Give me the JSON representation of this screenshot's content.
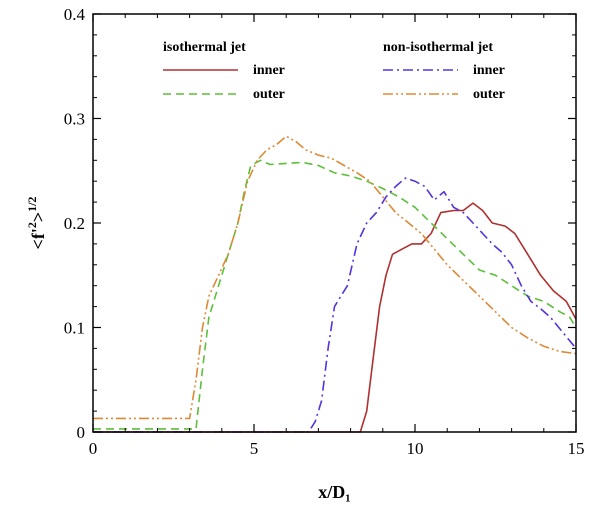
{
  "chart_data": {
    "type": "line",
    "xlabel": "x/D₁",
    "ylabel": "<f'²>¹ᐟ²",
    "ylabel_parts": {
      "main": "<f'",
      "sup": "2",
      "close": ">",
      "exp": "1/2"
    },
    "xlim": [
      0,
      15
    ],
    "ylim": [
      0,
      0.4
    ],
    "xticks": [
      0,
      5,
      10,
      15
    ],
    "xtick_labels": [
      "0",
      "5",
      "10",
      "15"
    ],
    "yticks": [
      0,
      0.1,
      0.2,
      0.3,
      0.4
    ],
    "ytick_labels": [
      "0",
      "0.1",
      "0.2",
      "0.3",
      "0.4"
    ],
    "grid": false,
    "legend": {
      "groups": [
        {
          "heading": "isothermal jet",
          "entries": [
            "inner",
            "outer"
          ]
        },
        {
          "heading": "non-isothermal jet",
          "entries": [
            "inner",
            "outer"
          ]
        }
      ]
    },
    "series": [
      {
        "name": "inner",
        "group": "isothermal jet",
        "color": "#b03030",
        "dash": "",
        "points": [
          [
            0,
            0
          ],
          [
            8.3,
            0
          ],
          [
            8.5,
            0.02
          ],
          [
            8.7,
            0.07
          ],
          [
            8.9,
            0.12
          ],
          [
            9.1,
            0.15
          ],
          [
            9.3,
            0.17
          ],
          [
            9.6,
            0.175
          ],
          [
            9.9,
            0.18
          ],
          [
            10.2,
            0.18
          ],
          [
            10.5,
            0.19
          ],
          [
            10.8,
            0.21
          ],
          [
            11.2,
            0.212
          ],
          [
            11.5,
            0.212
          ],
          [
            11.8,
            0.219
          ],
          [
            12.1,
            0.212
          ],
          [
            12.4,
            0.2
          ],
          [
            12.8,
            0.197
          ],
          [
            13.1,
            0.19
          ],
          [
            13.5,
            0.17
          ],
          [
            13.9,
            0.15
          ],
          [
            14.3,
            0.135
          ],
          [
            14.7,
            0.125
          ],
          [
            15,
            0.108
          ]
        ]
      },
      {
        "name": "outer",
        "group": "isothermal jet",
        "color": "#5dbf3a",
        "dash": "8,5",
        "points": [
          [
            0,
            0.003
          ],
          [
            3.2,
            0.003
          ],
          [
            3.4,
            0.06
          ],
          [
            3.6,
            0.11
          ],
          [
            3.9,
            0.14
          ],
          [
            4.2,
            0.17
          ],
          [
            4.5,
            0.2
          ],
          [
            4.7,
            0.23
          ],
          [
            4.9,
            0.255
          ],
          [
            5.2,
            0.26
          ],
          [
            5.5,
            0.256
          ],
          [
            6,
            0.257
          ],
          [
            6.5,
            0.258
          ],
          [
            7,
            0.255
          ],
          [
            7.5,
            0.248
          ],
          [
            8,
            0.245
          ],
          [
            8.5,
            0.24
          ],
          [
            9,
            0.233
          ],
          [
            9.5,
            0.225
          ],
          [
            10,
            0.215
          ],
          [
            10.5,
            0.2
          ],
          [
            11,
            0.185
          ],
          [
            11.5,
            0.17
          ],
          [
            12,
            0.155
          ],
          [
            12.5,
            0.15
          ],
          [
            13,
            0.14
          ],
          [
            13.5,
            0.13
          ],
          [
            14,
            0.125
          ],
          [
            14.5,
            0.115
          ],
          [
            14.8,
            0.11
          ],
          [
            15,
            0.1
          ]
        ]
      },
      {
        "name": "inner",
        "group": "non-isothermal jet",
        "color": "#5533dd",
        "dash": "10,4,2,4",
        "points": [
          [
            0,
            0
          ],
          [
            6.7,
            0
          ],
          [
            6.9,
            0.01
          ],
          [
            7.1,
            0.03
          ],
          [
            7.3,
            0.08
          ],
          [
            7.5,
            0.12
          ],
          [
            7.7,
            0.13
          ],
          [
            7.9,
            0.14
          ],
          [
            8.2,
            0.18
          ],
          [
            8.5,
            0.2
          ],
          [
            8.8,
            0.21
          ],
          [
            9.1,
            0.225
          ],
          [
            9.4,
            0.235
          ],
          [
            9.7,
            0.243
          ],
          [
            10,
            0.24
          ],
          [
            10.3,
            0.235
          ],
          [
            10.6,
            0.222
          ],
          [
            10.9,
            0.23
          ],
          [
            11.2,
            0.215
          ],
          [
            11.5,
            0.21
          ],
          [
            11.8,
            0.2
          ],
          [
            12.1,
            0.19
          ],
          [
            12.4,
            0.18
          ],
          [
            12.7,
            0.172
          ],
          [
            13,
            0.16
          ],
          [
            13.3,
            0.14
          ],
          [
            13.6,
            0.125
          ],
          [
            13.9,
            0.118
          ],
          [
            14.2,
            0.11
          ],
          [
            14.6,
            0.095
          ],
          [
            15,
            0.08
          ]
        ]
      },
      {
        "name": "outer",
        "group": "non-isothermal jet",
        "color": "#dd8a35",
        "dash": "10,3,2,3,2,3",
        "points": [
          [
            0,
            0.013
          ],
          [
            3,
            0.013
          ],
          [
            3.2,
            0.05
          ],
          [
            3.4,
            0.1
          ],
          [
            3.6,
            0.13
          ],
          [
            3.9,
            0.15
          ],
          [
            4.2,
            0.17
          ],
          [
            4.5,
            0.2
          ],
          [
            4.8,
            0.24
          ],
          [
            5.1,
            0.26
          ],
          [
            5.4,
            0.27
          ],
          [
            5.7,
            0.275
          ],
          [
            6,
            0.283
          ],
          [
            6.3,
            0.278
          ],
          [
            6.6,
            0.27
          ],
          [
            7,
            0.265
          ],
          [
            7.4,
            0.262
          ],
          [
            7.8,
            0.255
          ],
          [
            8.2,
            0.248
          ],
          [
            8.6,
            0.24
          ],
          [
            9,
            0.225
          ],
          [
            9.4,
            0.21
          ],
          [
            9.8,
            0.2
          ],
          [
            10.2,
            0.19
          ],
          [
            10.6,
            0.175
          ],
          [
            11,
            0.16
          ],
          [
            11.5,
            0.145
          ],
          [
            12,
            0.13
          ],
          [
            12.5,
            0.115
          ],
          [
            13,
            0.1
          ],
          [
            13.5,
            0.09
          ],
          [
            14,
            0.082
          ],
          [
            14.5,
            0.077
          ],
          [
            15,
            0.075
          ]
        ]
      }
    ]
  }
}
